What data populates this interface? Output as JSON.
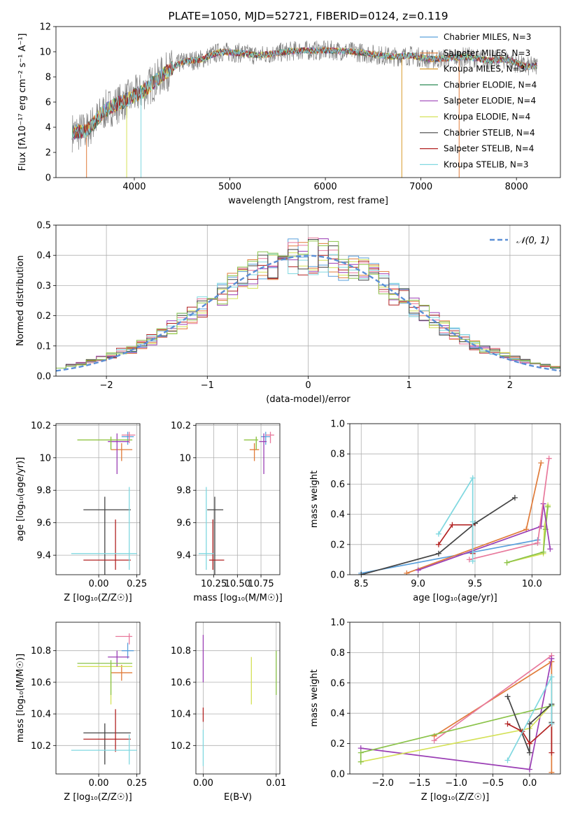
{
  "chart_data": [
    {
      "id": "spectrum",
      "type": "line",
      "title": "PLATE=1050, MJD=52721, FIBERID=0124, z=0.119",
      "xlabel": "wavelength [Angstrom, rest frame]",
      "ylabel": "Flux [fλ10⁻¹⁷ erg cm⁻² s⁻¹ A⁻¹]",
      "xlim": [
        3180,
        8460
      ],
      "ylim": [
        0,
        12
      ],
      "xticks": [
        4000,
        5000,
        6000,
        7000,
        8000
      ],
      "yticks": [
        0,
        2,
        4,
        6,
        8,
        10,
        12
      ],
      "grid": false,
      "legend_position": "right",
      "data_envelope": {
        "x": [
          3350,
          3500,
          3700,
          3900,
          4100,
          4300,
          4500,
          4700,
          4900,
          5100,
          5300,
          5500,
          5700,
          5900,
          6100,
          6300,
          6500,
          6700,
          6900,
          7100,
          7300,
          7500,
          7700,
          7900,
          8100,
          8220
        ],
        "y": [
          3.6,
          3.7,
          5.4,
          6.1,
          6.9,
          8.2,
          9.2,
          9.4,
          10.0,
          9.9,
          9.7,
          9.9,
          10.1,
          10.1,
          10.1,
          10.0,
          9.8,
          9.6,
          9.7,
          9.4,
          9.5,
          9.6,
          9.3,
          9.4,
          8.8,
          8.9
        ]
      },
      "series": [
        {
          "name": "Chabrier MILES, N_SSP=3",
          "color": "#5aa0dc"
        },
        {
          "name": "Salpeter MILES, N_SSP=3",
          "color": "#e07b39"
        },
        {
          "name": "Kroupa MILES, N_SSP=3",
          "color": "#d89b2c"
        },
        {
          "name": "Chabrier ELODIE, N_SSP=4",
          "color": "#2e8b57"
        },
        {
          "name": "Salpeter ELODIE, N_SSP=4",
          "color": "#9b3fb5"
        },
        {
          "name": "Kroupa ELODIE, N_SSP=4",
          "color": "#d4e157"
        },
        {
          "name": "Chabrier STELIB, N_SSP=4",
          "color": "#444444"
        },
        {
          "name": "Salpeter STELIB, N_SSP=4",
          "color": "#b22222"
        },
        {
          "name": "Kroupa STELIB, N_SSP=3",
          "color": "#80d8e0"
        }
      ]
    },
    {
      "id": "residuals",
      "type": "line",
      "xlabel": "(data-model)/error",
      "ylabel": "Normed distribution",
      "xlim": [
        -2.5,
        2.5
      ],
      "ylim": [
        0,
        0.5
      ],
      "xticks": [
        -2,
        -1,
        0,
        1,
        2
      ],
      "yticks": [
        0.0,
        0.1,
        0.2,
        0.3,
        0.4,
        0.5
      ],
      "grid": true,
      "legend_position": "top-right",
      "legend": "𝒩(0, 1)",
      "normal_curve_color": "#5b8fd6",
      "hist_bin_width": 0.1,
      "hist_centers": [
        -2.45,
        -2.35,
        -2.25,
        -2.15,
        -2.05,
        -1.95,
        -1.85,
        -1.75,
        -1.65,
        -1.55,
        -1.45,
        -1.35,
        -1.25,
        -1.15,
        -1.05,
        -0.95,
        -0.85,
        -0.75,
        -0.65,
        -0.55,
        -0.45,
        -0.35,
        -0.25,
        -0.15,
        -0.05,
        0.05,
        0.15,
        0.25,
        0.35,
        0.45,
        0.55,
        0.65,
        0.75,
        0.85,
        0.95,
        1.05,
        1.15,
        1.25,
        1.35,
        1.45,
        1.55,
        1.65,
        1.75,
        1.85,
        1.95,
        2.05,
        2.15,
        2.25,
        2.35,
        2.45
      ],
      "hist_colors": [
        "#5aa0dc",
        "#e07b39",
        "#d4e157",
        "#9b3fb5",
        "#b22222",
        "#80d8e0",
        "#e8799c",
        "#444444",
        "#8bc34a"
      ]
    },
    {
      "id": "age_vs_Z",
      "type": "scatter",
      "xlabel": "Z [log₁₀(Z/Z☉)]",
      "ylabel": "age  [log₁₀(age/yr)]",
      "xlim": [
        -0.28,
        0.27
      ],
      "ylim": [
        9.28,
        10.21
      ],
      "xticks": [
        0.0,
        0.25
      ],
      "xtick_labels": [
        "0.00",
        "0.25"
      ],
      "yticks": [
        9.4,
        9.6,
        9.8,
        10.0,
        10.2
      ],
      "grid": true,
      "points": [
        {
          "x": 0.19,
          "y": 10.13,
          "xerr": [
            0.04,
            0.04
          ],
          "yerr": [
            0.05,
            0.03
          ],
          "color": "#5aa0dc"
        },
        {
          "x": 0.15,
          "y": 10.05,
          "xerr": [
            0.07,
            0.07
          ],
          "yerr": [
            0.07,
            0.04
          ],
          "color": "#e07b39"
        },
        {
          "x": 0.08,
          "y": 10.11,
          "xerr": [
            0.22,
            0.14
          ],
          "yerr": [
            0.06,
            0.02
          ],
          "color": "#d4e157"
        },
        {
          "x": 0.12,
          "y": 10.1,
          "xerr": [
            0.06,
            0.08
          ],
          "yerr": [
            0.2,
            0.05
          ],
          "color": "#9b3fb5"
        },
        {
          "x": 0.08,
          "y": 10.11,
          "xerr": [
            0.22,
            0.14
          ],
          "yerr": [
            0.06,
            0.02
          ],
          "color": "#8bc34a"
        },
        {
          "x": 0.2,
          "y": 10.14,
          "xerr": [
            0.05,
            0.04
          ],
          "yerr": [
            0.05,
            0.02
          ],
          "color": "#e8799c"
        },
        {
          "x": 0.04,
          "y": 9.68,
          "xerr": [
            0.14,
            0.17
          ],
          "yerr": [
            0.4,
            0.08
          ],
          "color": "#444444"
        },
        {
          "x": 0.11,
          "y": 9.37,
          "xerr": [
            0.21,
            0.1
          ],
          "yerr": [
            0.06,
            0.25
          ],
          "color": "#b22222"
        },
        {
          "x": 0.2,
          "y": 9.41,
          "xerr": [
            0.38,
            0.05
          ],
          "yerr": [
            0.1,
            0.41
          ],
          "color": "#80d8e0"
        }
      ]
    },
    {
      "id": "age_vs_mass",
      "type": "scatter",
      "xlabel": "mass [log₁₀(M/M☉)]",
      "xlim": [
        10.06,
        10.95
      ],
      "ylim": [
        9.28,
        10.21
      ],
      "xticks": [
        10.25,
        10.5,
        10.75
      ],
      "xtick_labels": [
        "10.25",
        "10.50",
        "10.75"
      ],
      "yticks": [
        9.4,
        9.6,
        9.8,
        10.0,
        10.2
      ],
      "grid": true,
      "points": [
        {
          "x": 10.8,
          "y": 10.13,
          "xerr": [
            0.05,
            0.05
          ],
          "yerr": [
            0.05,
            0.03
          ],
          "color": "#5aa0dc"
        },
        {
          "x": 10.68,
          "y": 10.05,
          "xerr": [
            0.05,
            0.05
          ],
          "yerr": [
            0.07,
            0.04
          ],
          "color": "#e07b39"
        },
        {
          "x": 10.7,
          "y": 10.11,
          "xerr": [
            0.13,
            0.02
          ],
          "yerr": [
            0.06,
            0.02
          ],
          "color": "#d4e157"
        },
        {
          "x": 10.78,
          "y": 10.1,
          "xerr": [
            0.05,
            0.03
          ],
          "yerr": [
            0.2,
            0.05
          ],
          "color": "#9b3fb5"
        },
        {
          "x": 10.7,
          "y": 10.11,
          "xerr": [
            0.13,
            0.02
          ],
          "yerr": [
            0.06,
            0.02
          ],
          "color": "#8bc34a"
        },
        {
          "x": 10.85,
          "y": 10.14,
          "xerr": [
            0.05,
            0.04
          ],
          "yerr": [
            0.05,
            0.02
          ],
          "color": "#e8799c"
        },
        {
          "x": 10.26,
          "y": 9.68,
          "xerr": [
            0.08,
            0.09
          ],
          "yerr": [
            0.4,
            0.08
          ],
          "color": "#444444"
        },
        {
          "x": 10.24,
          "y": 9.37,
          "xerr": [
            0.04,
            0.12
          ],
          "yerr": [
            0.06,
            0.25
          ],
          "color": "#b22222"
        },
        {
          "x": 10.17,
          "y": 9.41,
          "xerr": [
            0.08,
            0.08
          ],
          "yerr": [
            0.1,
            0.41
          ],
          "color": "#80d8e0"
        }
      ]
    },
    {
      "id": "weight_vs_age",
      "type": "line",
      "xlabel": "age  [log₁₀(age/yr)]",
      "ylabel": "mass weight",
      "xlim": [
        8.4,
        10.25
      ],
      "ylim": [
        0,
        1
      ],
      "xticks": [
        8.5,
        9.0,
        9.5,
        10.0
      ],
      "xtick_labels": [
        "8.5",
        "9.0",
        "9.5",
        "10.0"
      ],
      "yticks": [
        0.0,
        0.2,
        0.4,
        0.6,
        0.8,
        1.0
      ],
      "grid": true,
      "series": [
        {
          "color": "#5aa0dc",
          "x": [
            8.5,
            10.05
          ],
          "y": [
            0.01,
            0.23
          ]
        },
        {
          "color": "#e07b39",
          "x": [
            8.9,
            9.95,
            10.08
          ],
          "y": [
            0.01,
            0.3,
            0.74
          ]
        },
        {
          "color": "#d4e157",
          "x": [
            9.78,
            10.1,
            10.11,
            10.14
          ],
          "y": [
            0.08,
            0.14,
            0.32,
            0.46
          ]
        },
        {
          "color": "#8bc34a",
          "x": [
            9.78,
            10.1,
            10.12,
            10.14
          ],
          "y": [
            0.08,
            0.15,
            0.3,
            0.45
          ]
        },
        {
          "color": "#9b3fb5",
          "x": [
            9.0,
            10.08,
            10.1,
            10.16
          ],
          "y": [
            0.03,
            0.32,
            0.47,
            0.17
          ]
        },
        {
          "color": "#e8799c",
          "x": [
            9.45,
            10.05,
            10.15
          ],
          "y": [
            0.1,
            0.21,
            0.77
          ]
        },
        {
          "color": "#444444",
          "x": [
            8.5,
            9.18,
            9.5,
            9.85
          ],
          "y": [
            0.0,
            0.14,
            0.34,
            0.51
          ]
        },
        {
          "color": "#b22222",
          "x": [
            9.18,
            9.3,
            9.48,
            9.48
          ],
          "y": [
            0.2,
            0.33,
            0.33,
            0.14
          ]
        },
        {
          "color": "#80d8e0",
          "x": [
            9.18,
            9.48,
            9.48,
            9.48
          ],
          "y": [
            0.27,
            0.64,
            0.35,
            0.09
          ]
        }
      ]
    },
    {
      "id": "mass_vs_Z",
      "type": "scatter",
      "xlabel": "Z [log₁₀(Z/Z☉)]",
      "ylabel": "mass [log₁₀(M/M☉)]",
      "xlim": [
        -0.28,
        0.27
      ],
      "ylim": [
        10.02,
        10.98
      ],
      "xticks": [
        0.0,
        0.25
      ],
      "xtick_labels": [
        "0.00",
        "0.25"
      ],
      "yticks": [
        10.2,
        10.4,
        10.6,
        10.8
      ],
      "grid": true,
      "points": [
        {
          "x": 0.19,
          "y": 10.8,
          "xerr": [
            0.04,
            0.04
          ],
          "yerr": [
            0.05,
            0.05
          ],
          "color": "#5aa0dc"
        },
        {
          "x": 0.15,
          "y": 10.66,
          "xerr": [
            0.07,
            0.07
          ],
          "yerr": [
            0.05,
            0.05
          ],
          "color": "#e07b39"
        },
        {
          "x": 0.08,
          "y": 10.7,
          "xerr": [
            0.22,
            0.14
          ],
          "yerr": [
            0.24,
            0.02
          ],
          "color": "#d4e157"
        },
        {
          "x": 0.12,
          "y": 10.76,
          "xerr": [
            0.06,
            0.08
          ],
          "yerr": [
            0.06,
            0.04
          ],
          "color": "#9b3fb5"
        },
        {
          "x": 0.08,
          "y": 10.72,
          "xerr": [
            0.22,
            0.14
          ],
          "yerr": [
            0.2,
            0.02
          ],
          "color": "#8bc34a"
        },
        {
          "x": 0.2,
          "y": 10.89,
          "xerr": [
            0.09,
            0.02
          ],
          "yerr": [
            0.05,
            0.02
          ],
          "color": "#e8799c"
        },
        {
          "x": 0.04,
          "y": 10.28,
          "xerr": [
            0.14,
            0.17
          ],
          "yerr": [
            0.2,
            0.06
          ],
          "color": "#444444"
        },
        {
          "x": 0.11,
          "y": 10.24,
          "xerr": [
            0.21,
            0.1
          ],
          "yerr": [
            0.08,
            0.19
          ],
          "color": "#b22222"
        },
        {
          "x": 0.2,
          "y": 10.17,
          "xerr": [
            0.38,
            0.05
          ],
          "yerr": [
            0.09,
            0.1
          ],
          "color": "#80d8e0"
        }
      ]
    },
    {
      "id": "mass_vs_EBV",
      "type": "scatter",
      "xlabel": "E(B-V)",
      "xlim": [
        -0.001,
        0.0105
      ],
      "ylim": [
        10.02,
        10.98
      ],
      "xticks": [
        0.0,
        0.01
      ],
      "xtick_labels": [
        "0.00",
        "0.01"
      ],
      "yticks": [
        10.2,
        10.4,
        10.6,
        10.8
      ],
      "grid": true,
      "segments": [
        {
          "x": 0.0,
          "y0": 10.6,
          "y1": 10.9,
          "color": "#9b3fb5"
        },
        {
          "x": 0.0,
          "y0": 10.35,
          "y1": 10.44,
          "color": "#b22222"
        },
        {
          "x": 0.0,
          "y0": 10.07,
          "y1": 10.3,
          "color": "#80d8e0"
        },
        {
          "x": 0.0066,
          "y0": 10.46,
          "y1": 10.76,
          "color": "#d4e157"
        },
        {
          "x": 0.01,
          "y0": 10.52,
          "y1": 10.8,
          "color": "#8bc34a"
        }
      ]
    },
    {
      "id": "weight_vs_Z",
      "type": "line",
      "xlabel": "Z [log₁₀(Z/Z☉)]",
      "ylabel": "mass weight",
      "xlim": [
        -2.45,
        0.42
      ],
      "ylim": [
        0,
        1
      ],
      "xticks": [
        -2.0,
        -1.5,
        -1.0,
        -0.5,
        0.0
      ],
      "xtick_labels": [
        "−2.0",
        "−1.5",
        "−1.0",
        "−0.5",
        "0.0"
      ],
      "yticks": [
        0.0,
        0.2,
        0.4,
        0.6,
        0.8,
        1.0
      ],
      "grid": true,
      "series": [
        {
          "color": "#e07b39",
          "x": [
            -1.3,
            0.3,
            0.3
          ],
          "y": [
            0.25,
            0.74,
            0.01
          ]
        },
        {
          "color": "#e8799c",
          "x": [
            -1.3,
            0.3
          ],
          "y": [
            0.22,
            0.78
          ]
        },
        {
          "color": "#9b3fb5",
          "x": [
            -2.3,
            0.0,
            0.3
          ],
          "y": [
            0.17,
            0.03,
            0.76
          ]
        },
        {
          "color": "#d4e157",
          "x": [
            -2.3,
            0.0,
            0.3
          ],
          "y": [
            0.08,
            0.3,
            0.46
          ]
        },
        {
          "color": "#8bc34a",
          "x": [
            -2.3,
            -2.3,
            0.3
          ],
          "y": [
            0.08,
            0.14,
            0.45
          ]
        },
        {
          "color": "#444444",
          "x": [
            -0.3,
            0.0,
            0.0,
            0.3,
            0.3
          ],
          "y": [
            0.51,
            0.14,
            0.33,
            0.46,
            0.34
          ]
        },
        {
          "color": "#b22222",
          "x": [
            -0.3,
            -0.1,
            0.0,
            0.3,
            0.3
          ],
          "y": [
            0.33,
            0.28,
            0.2,
            0.33,
            0.14
          ]
        },
        {
          "color": "#80d8e0",
          "x": [
            -0.3,
            0.3,
            0.3
          ],
          "y": [
            0.09,
            0.64,
            0.33
          ]
        }
      ]
    }
  ]
}
